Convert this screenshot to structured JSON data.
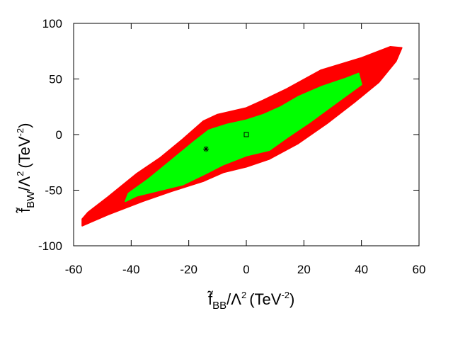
{
  "chart_data": {
    "type": "contour",
    "title": "",
    "xlabel": {
      "base": "f̃",
      "sub": "BB",
      "mid": "/Λ",
      "sup1": "2",
      "unit": "(TeV",
      "sup2": "-2",
      "end": ")"
    },
    "ylabel": {
      "base": "f̃",
      "sub": "BW",
      "mid": "/Λ",
      "sup1": "2",
      "unit": "(TeV",
      "sup2": "-2",
      "end": ")"
    },
    "xlim": [
      -60,
      60
    ],
    "ylim": [
      -100,
      100
    ],
    "xticks": [
      -60,
      -40,
      -20,
      0,
      20,
      40,
      60
    ],
    "yticks": [
      -100,
      -50,
      0,
      50,
      100
    ],
    "xtick_labels": [
      "-60",
      "-40",
      "-20",
      "0",
      "20",
      "40",
      "60"
    ],
    "ytick_labels": [
      "-100",
      "-50",
      "0",
      "50",
      "100"
    ],
    "grid": false,
    "regions": [
      {
        "name": "red",
        "color": "#ff0000",
        "outline": [
          [
            -57,
            -82
          ],
          [
            -48,
            -72
          ],
          [
            -36,
            -60
          ],
          [
            -26,
            -51
          ],
          [
            -15,
            -42
          ],
          [
            -8,
            -34
          ],
          [
            0,
            -29
          ],
          [
            8,
            -22
          ],
          [
            18,
            -8
          ],
          [
            28,
            10
          ],
          [
            38,
            30
          ],
          [
            46,
            47
          ],
          [
            52,
            66
          ],
          [
            54,
            78
          ],
          [
            50,
            79
          ],
          [
            40,
            69
          ],
          [
            26,
            58
          ],
          [
            14,
            41
          ],
          [
            6,
            31
          ],
          [
            0,
            24
          ],
          [
            -10,
            18
          ],
          [
            -15,
            12
          ],
          [
            -22,
            -4
          ],
          [
            -30,
            -21
          ],
          [
            -38,
            -35
          ],
          [
            -48,
            -56
          ],
          [
            -55,
            -70
          ],
          [
            -57,
            -76
          ]
        ]
      },
      {
        "name": "green",
        "color": "#00ff00",
        "outline": [
          [
            -42,
            -60
          ],
          [
            -38,
            -55
          ],
          [
            -30,
            -50
          ],
          [
            -22,
            -45
          ],
          [
            -14,
            -35
          ],
          [
            -8,
            -27
          ],
          [
            0,
            -19
          ],
          [
            8,
            -14
          ],
          [
            14,
            -3
          ],
          [
            22,
            11
          ],
          [
            32,
            30
          ],
          [
            40,
            45
          ],
          [
            39,
            55
          ],
          [
            34,
            50
          ],
          [
            26,
            43
          ],
          [
            18,
            34
          ],
          [
            12,
            25
          ],
          [
            6,
            18
          ],
          [
            0,
            13
          ],
          [
            -7,
            9
          ],
          [
            -13,
            4
          ],
          [
            -18,
            -6
          ],
          [
            -26,
            -23
          ],
          [
            -34,
            -40
          ],
          [
            -41,
            -53
          ]
        ]
      }
    ],
    "markers": [
      {
        "name": "best-fit-star",
        "symbol": "*",
        "x": -14,
        "y": -13
      },
      {
        "name": "sm-square",
        "symbol": "square",
        "x": 0,
        "y": 0
      }
    ]
  }
}
